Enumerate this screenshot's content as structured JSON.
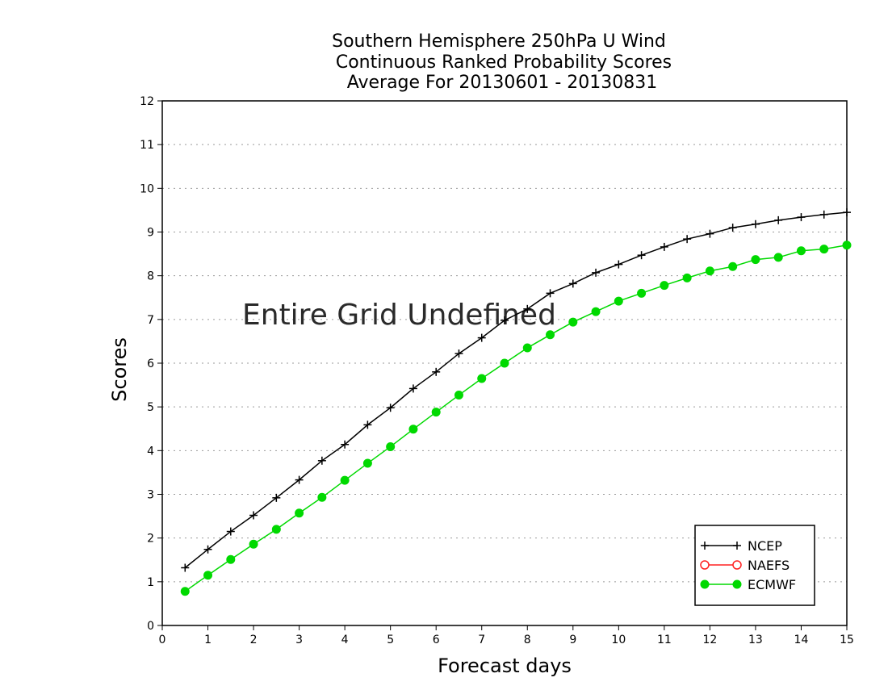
{
  "chart_data": {
    "type": "line",
    "title": [
      "Southern Hemisphere 250hPa U Wind",
      "Continuous Ranked Probability Scores",
      "Average For 20130601 - 20130831"
    ],
    "xlabel": "Forecast days",
    "ylabel": "Scores",
    "xlim": [
      0,
      15
    ],
    "ylim": [
      0,
      12
    ],
    "xticks": [
      0,
      1,
      2,
      3,
      4,
      5,
      6,
      7,
      8,
      9,
      10,
      11,
      12,
      13,
      14,
      15
    ],
    "yticks": [
      0,
      1,
      2,
      3,
      4,
      5,
      6,
      7,
      8,
      9,
      10,
      11,
      12
    ],
    "grid": "horizontal dotted",
    "legend_position": "bottom-right",
    "annotation": "Entire Grid Undefined",
    "series": [
      {
        "name": "NCEP",
        "color": "#000000",
        "marker": "plus",
        "x": [
          0.5,
          1,
          1.5,
          2,
          2.5,
          3,
          3.5,
          4,
          4.5,
          5,
          5.5,
          6,
          6.5,
          7,
          7.5,
          8,
          8.5,
          9,
          9.5,
          10,
          10.5,
          11,
          11.5,
          12,
          12.5,
          13,
          13.5,
          14,
          14.5,
          15
        ],
        "values": [
          1.32,
          1.74,
          2.15,
          2.52,
          2.92,
          3.33,
          3.77,
          4.14,
          4.59,
          4.98,
          5.42,
          5.8,
          6.22,
          6.58,
          6.98,
          7.24,
          7.6,
          7.82,
          8.07,
          8.26,
          8.47,
          8.66,
          8.84,
          8.96,
          9.1,
          9.18,
          9.27,
          9.34,
          9.4,
          9.45
        ]
      },
      {
        "name": "NAEFS",
        "color": "#ff2020",
        "marker": "open-circle",
        "x": [],
        "values": []
      },
      {
        "name": "ECMWF",
        "color": "#00d900",
        "marker": "filled-circle",
        "x": [
          0.5,
          1,
          1.5,
          2,
          2.5,
          3,
          3.5,
          4,
          4.5,
          5,
          5.5,
          6,
          6.5,
          7,
          7.5,
          8,
          8.5,
          9,
          9.5,
          10,
          10.5,
          11,
          11.5,
          12,
          12.5,
          13,
          13.5,
          14,
          14.5,
          15
        ],
        "values": [
          0.78,
          1.15,
          1.51,
          1.86,
          2.2,
          2.57,
          2.93,
          3.32,
          3.71,
          4.09,
          4.49,
          4.88,
          5.27,
          5.65,
          6.0,
          6.35,
          6.65,
          6.94,
          7.18,
          7.42,
          7.6,
          7.78,
          7.95,
          8.11,
          8.21,
          8.37,
          8.42,
          8.57,
          8.61,
          8.7
        ]
      }
    ]
  }
}
